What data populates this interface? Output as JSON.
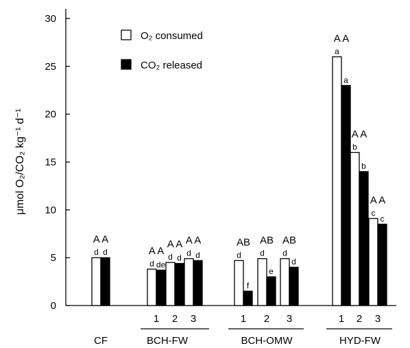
{
  "chart_data": {
    "type": "bar",
    "ylabel": "μmol O₂/CO₂ kg⁻¹ d⁻¹",
    "ylim": [
      0,
      30
    ],
    "yticks": [
      "0",
      "5",
      "10",
      "15",
      "20",
      "25",
      "30"
    ],
    "grid": false,
    "legend_position": "top-left",
    "series": [
      {
        "name": "O₂ consumed",
        "color": "#ffffff",
        "values": [
          5.0,
          3.8,
          4.5,
          4.9,
          4.7,
          4.9,
          4.9,
          26.0,
          16.0,
          9.1
        ]
      },
      {
        "name": "CO₂ released",
        "color": "#000000",
        "values": [
          5.0,
          3.7,
          4.4,
          4.7,
          1.5,
          3.0,
          4.0,
          23.0,
          14.0,
          8.5
        ]
      }
    ],
    "categories": [
      "",
      "1",
      "2",
      "3",
      "1",
      "2",
      "3",
      "1",
      "2",
      "3"
    ],
    "groups": [
      {
        "label": "CF",
        "members": [
          0
        ]
      },
      {
        "label": "BCH-FW",
        "members": [
          1,
          2,
          3
        ]
      },
      {
        "label": "BCH-OMW",
        "members": [
          4,
          5,
          6
        ]
      },
      {
        "label": "HYD-FW",
        "members": [
          7,
          8,
          9
        ]
      }
    ],
    "significance_letters": {
      "O2": [
        "d",
        "d",
        "d",
        "d",
        "d",
        "d",
        "d",
        "a",
        "b",
        "c"
      ],
      "CO2": [
        "d",
        "de",
        "d",
        "d",
        "f",
        "e",
        "d",
        "a",
        "b",
        "c"
      ]
    },
    "group_letters": [
      "A A",
      "A A",
      "A A",
      "A A",
      "AB",
      "AB",
      "AB",
      "A A",
      "A A",
      "A A"
    ]
  }
}
